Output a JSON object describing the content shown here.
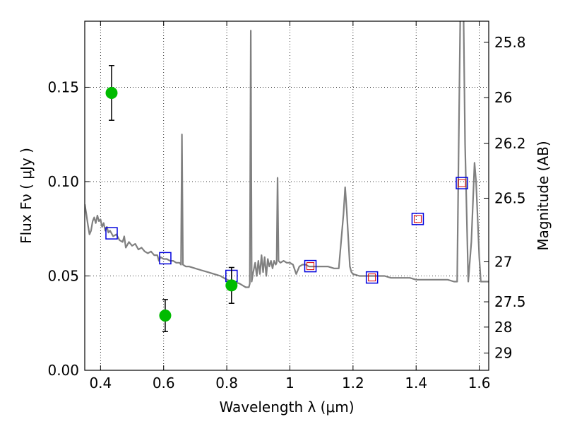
{
  "chart_data": {
    "type": "scatter",
    "xlabel": "Wavelength  λ (μm)",
    "ylabel": "Flux  Fν  ( μJy )",
    "y2label": "Magnitude (AB)",
    "xlim": [
      0.35,
      1.63
    ],
    "ylim": [
      0,
      0.185
    ],
    "grid": true,
    "x_ticks": [
      {
        "value": 0.4,
        "label": "0.4"
      },
      {
        "value": 0.6,
        "label": "0.6"
      },
      {
        "value": 0.8,
        "label": "0.8"
      },
      {
        "value": 1.0,
        "label": "1"
      },
      {
        "value": 1.2,
        "label": "1.2"
      },
      {
        "value": 1.4,
        "label": "1.4"
      },
      {
        "value": 1.6,
        "label": "1.6"
      }
    ],
    "y_ticks": [
      {
        "value": 0.0,
        "label": "0.00"
      },
      {
        "value": 0.05,
        "label": "0.05"
      },
      {
        "value": 0.1,
        "label": "0.10"
      },
      {
        "value": 0.15,
        "label": "0.15"
      }
    ],
    "y2_ticks": [
      {
        "flux": 0.1738,
        "label": "25.8"
      },
      {
        "flux": 0.1445,
        "label": "26"
      },
      {
        "flux": 0.1202,
        "label": "26.2"
      },
      {
        "flux": 0.0912,
        "label": "26.5"
      },
      {
        "flux": 0.0575,
        "label": "27"
      },
      {
        "flux": 0.0363,
        "label": "27.5"
      },
      {
        "flux": 0.0229,
        "label": "28"
      },
      {
        "flux": 0.0091,
        "label": "29"
      }
    ],
    "series": [
      {
        "kind": "line",
        "color": "#808080",
        "points": [
          [
            0.35,
            0.088
          ],
          [
            0.355,
            0.083
          ],
          [
            0.36,
            0.077
          ],
          [
            0.365,
            0.072
          ],
          [
            0.37,
            0.074
          ],
          [
            0.375,
            0.079
          ],
          [
            0.38,
            0.081
          ],
          [
            0.385,
            0.078
          ],
          [
            0.39,
            0.082
          ],
          [
            0.395,
            0.079
          ],
          [
            0.4,
            0.08
          ],
          [
            0.405,
            0.076
          ],
          [
            0.41,
            0.078
          ],
          [
            0.415,
            0.074
          ],
          [
            0.42,
            0.076
          ],
          [
            0.425,
            0.073
          ],
          [
            0.43,
            0.074
          ],
          [
            0.44,
            0.071
          ],
          [
            0.45,
            0.072
          ],
          [
            0.46,
            0.069
          ],
          [
            0.47,
            0.068
          ],
          [
            0.475,
            0.071
          ],
          [
            0.48,
            0.065
          ],
          [
            0.49,
            0.068
          ],
          [
            0.5,
            0.066
          ],
          [
            0.51,
            0.067
          ],
          [
            0.52,
            0.064
          ],
          [
            0.53,
            0.065
          ],
          [
            0.54,
            0.063
          ],
          [
            0.55,
            0.062
          ],
          [
            0.56,
            0.063
          ],
          [
            0.57,
            0.061
          ],
          [
            0.58,
            0.061
          ],
          [
            0.585,
            0.058
          ],
          [
            0.59,
            0.06
          ],
          [
            0.6,
            0.059
          ],
          [
            0.61,
            0.059
          ],
          [
            0.62,
            0.058
          ],
          [
            0.63,
            0.058
          ],
          [
            0.64,
            0.057
          ],
          [
            0.65,
            0.057
          ],
          [
            0.655,
            0.056
          ],
          [
            0.658,
            0.125
          ],
          [
            0.661,
            0.056
          ],
          [
            0.67,
            0.055
          ],
          [
            0.68,
            0.055
          ],
          [
            0.7,
            0.054
          ],
          [
            0.72,
            0.053
          ],
          [
            0.74,
            0.052
          ],
          [
            0.76,
            0.051
          ],
          [
            0.78,
            0.05
          ],
          [
            0.8,
            0.048
          ],
          [
            0.82,
            0.047
          ],
          [
            0.84,
            0.046
          ],
          [
            0.85,
            0.045
          ],
          [
            0.86,
            0.044
          ],
          [
            0.87,
            0.044
          ],
          [
            0.873,
            0.046
          ],
          [
            0.876,
            0.18
          ],
          [
            0.879,
            0.047
          ],
          [
            0.884,
            0.052
          ],
          [
            0.89,
            0.057
          ],
          [
            0.895,
            0.05
          ],
          [
            0.9,
            0.058
          ],
          [
            0.905,
            0.051
          ],
          [
            0.91,
            0.061
          ],
          [
            0.915,
            0.052
          ],
          [
            0.92,
            0.06
          ],
          [
            0.925,
            0.05
          ],
          [
            0.93,
            0.059
          ],
          [
            0.935,
            0.055
          ],
          [
            0.94,
            0.058
          ],
          [
            0.945,
            0.054
          ],
          [
            0.95,
            0.058
          ],
          [
            0.955,
            0.056
          ],
          [
            0.958,
            0.057
          ],
          [
            0.961,
            0.102
          ],
          [
            0.964,
            0.058
          ],
          [
            0.97,
            0.057
          ],
          [
            0.98,
            0.058
          ],
          [
            0.99,
            0.057
          ],
          [
            1.0,
            0.057
          ],
          [
            1.01,
            0.056
          ],
          [
            1.02,
            0.051
          ],
          [
            1.03,
            0.055
          ],
          [
            1.04,
            0.056
          ],
          [
            1.05,
            0.056
          ],
          [
            1.06,
            0.055
          ],
          [
            1.08,
            0.055
          ],
          [
            1.1,
            0.055
          ],
          [
            1.12,
            0.055
          ],
          [
            1.14,
            0.054
          ],
          [
            1.155,
            0.054
          ],
          [
            1.17,
            0.083
          ],
          [
            1.175,
            0.097
          ],
          [
            1.18,
            0.085
          ],
          [
            1.19,
            0.055
          ],
          [
            1.195,
            0.052
          ],
          [
            1.2,
            0.051
          ],
          [
            1.22,
            0.05
          ],
          [
            1.24,
            0.05
          ],
          [
            1.26,
            0.05
          ],
          [
            1.28,
            0.05
          ],
          [
            1.3,
            0.05
          ],
          [
            1.32,
            0.049
          ],
          [
            1.34,
            0.049
          ],
          [
            1.36,
            0.049
          ],
          [
            1.38,
            0.049
          ],
          [
            1.4,
            0.048
          ],
          [
            1.42,
            0.048
          ],
          [
            1.44,
            0.048
          ],
          [
            1.46,
            0.048
          ],
          [
            1.48,
            0.048
          ],
          [
            1.5,
            0.048
          ],
          [
            1.52,
            0.047
          ],
          [
            1.53,
            0.047
          ],
          [
            1.535,
            0.12
          ],
          [
            1.54,
            0.19
          ],
          [
            1.55,
            0.19
          ],
          [
            1.555,
            0.12
          ],
          [
            1.565,
            0.047
          ],
          [
            1.575,
            0.068
          ],
          [
            1.585,
            0.11
          ],
          [
            1.59,
            0.1
          ],
          [
            1.6,
            0.06
          ],
          [
            1.605,
            0.047
          ],
          [
            1.61,
            0.047
          ],
          [
            1.63,
            0.047
          ]
        ]
      },
      {
        "kind": "open-square",
        "color": "#0000dd",
        "x": [
          0.435,
          0.605,
          0.815,
          1.065,
          1.26,
          1.405,
          1.545
        ],
        "y": [
          0.0726,
          0.0594,
          0.05,
          0.0552,
          0.0492,
          0.0802,
          0.0992
        ]
      },
      {
        "kind": "small-open-square",
        "color": "#dd0000",
        "x": [
          1.065,
          1.26,
          1.405,
          1.545
        ],
        "y": [
          0.0552,
          0.0492,
          0.0802,
          0.0992
        ]
      },
      {
        "kind": "filled-circle-errorbar",
        "color": "#00bb00",
        "x": [
          0.435,
          0.605,
          0.815
        ],
        "y": [
          0.147,
          0.029,
          0.045
        ],
        "err": [
          0.0145,
          0.0085,
          0.0095
        ]
      }
    ]
  }
}
